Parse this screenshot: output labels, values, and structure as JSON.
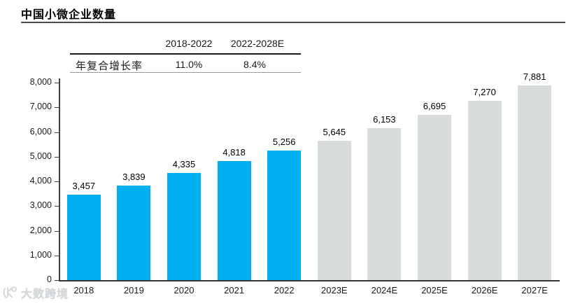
{
  "page": {
    "title": "中国小微企业数量"
  },
  "cagr_table": {
    "row_label": "年复合增长率",
    "columns": [
      {
        "period": "2018-2022",
        "value": "11.0%"
      },
      {
        "period": "2022-2028E",
        "value": "8.4%"
      }
    ]
  },
  "watermark": {
    "text": "大数跨境",
    "icon": "swirl-logo-icon"
  },
  "colors": {
    "actual_bar": "#00B0F0",
    "forecast_bar": "#D9DCDD",
    "axis": "#404040",
    "text": "#000000"
  },
  "chart_data": {
    "type": "bar",
    "title": "中国小微企业数量",
    "categories": [
      "2018",
      "2019",
      "2020",
      "2021",
      "2022",
      "2023E",
      "2024E",
      "2025E",
      "2026E",
      "2027E"
    ],
    "series": [
      {
        "name": "小微企业数量",
        "values": [
          3457,
          3839,
          4335,
          4818,
          5256,
          5645,
          6153,
          6695,
          7270,
          7881
        ]
      }
    ],
    "data_labels": [
      "3,457",
      "3,839",
      "4,335",
      "4,818",
      "5,256",
      "5,645",
      "6,153",
      "6,695",
      "7,270",
      "7,881"
    ],
    "bar_types": [
      "actual",
      "actual",
      "actual",
      "actual",
      "actual",
      "forecast",
      "forecast",
      "forecast",
      "forecast",
      "forecast"
    ],
    "xlabel": "",
    "ylabel": "",
    "ylim": [
      0,
      8000
    ],
    "ytick_step": 1000,
    "ytick_labels": [
      "0",
      "1,000",
      "2,000",
      "3,000",
      "4,000",
      "5,000",
      "6,000",
      "7,000",
      "8,000"
    ],
    "grid": false,
    "legend": null
  }
}
